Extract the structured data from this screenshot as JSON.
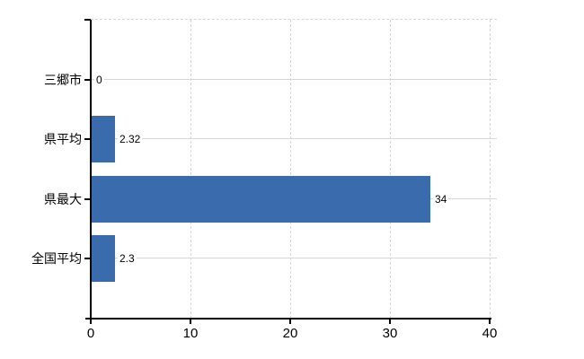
{
  "chart_data": {
    "type": "bar",
    "orientation": "horizontal",
    "title": "",
    "xlabel": "",
    "ylabel": "",
    "categories": [
      "三郷市",
      "県平均",
      "県最大",
      "全国平均"
    ],
    "values": [
      0,
      2.32,
      34,
      2.3
    ],
    "value_labels": [
      "0",
      "2.32",
      "34",
      "2.3"
    ],
    "xlim": [
      0,
      40
    ],
    "xticks": [
      0,
      10,
      20,
      30,
      40
    ],
    "xtick_labels": [
      "0",
      "10",
      "20",
      "30",
      "40"
    ],
    "grid": true,
    "legend": false,
    "colors": {
      "bar": "#3a6bac",
      "grid": "#d6d6d6",
      "axis": "#000000",
      "text": "#000000",
      "background": "#ffffff"
    }
  }
}
